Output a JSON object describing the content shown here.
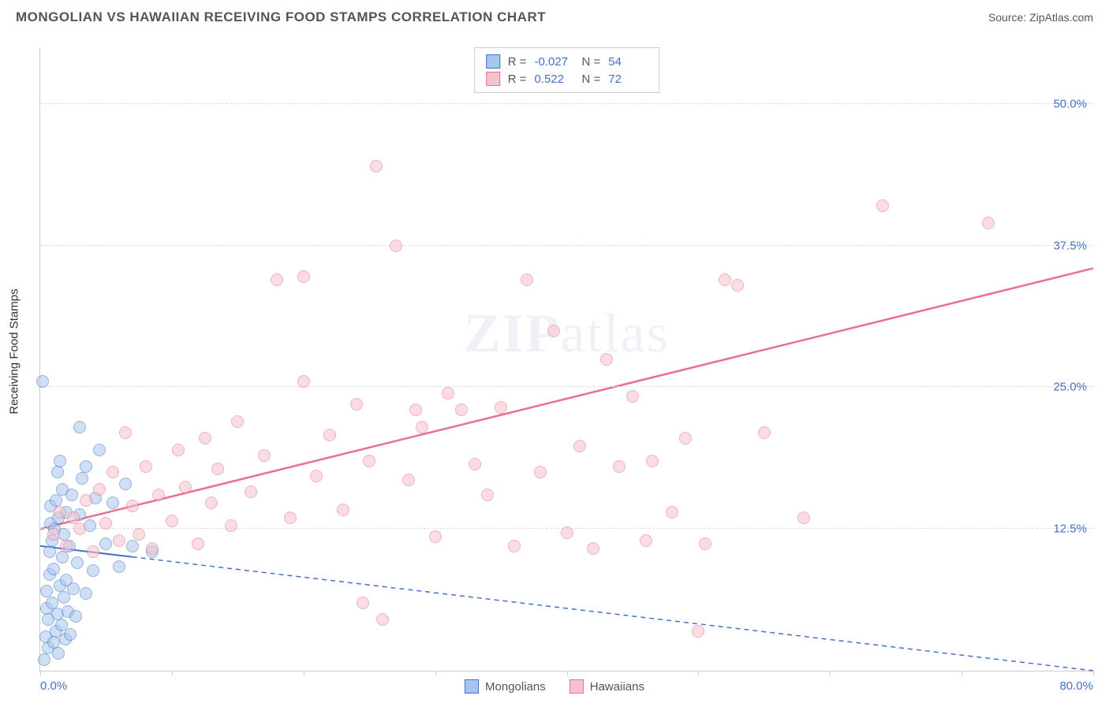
{
  "header": {
    "title": "MONGOLIAN VS HAWAIIAN RECEIVING FOOD STAMPS CORRELATION CHART",
    "source_prefix": "Source: ",
    "source_name": "ZipAtlas.com"
  },
  "chart": {
    "type": "scatter",
    "ylabel": "Receiving Food Stamps",
    "watermark": "ZIPatlas",
    "background_color": "#ffffff",
    "grid_color": "#dddddd",
    "axis_color": "#cccccc",
    "tick_label_color": "#4472c4",
    "xlim": [
      0,
      80
    ],
    "ylim": [
      0,
      55
    ],
    "xticks": [
      0,
      10,
      20,
      30,
      40,
      50,
      60,
      70,
      80
    ],
    "xtick_labels": {
      "0": "0.0%",
      "80": "80.0%"
    },
    "yticks": [
      12.5,
      25.0,
      37.5,
      50.0
    ],
    "ytick_labels": [
      "12.5%",
      "25.0%",
      "37.5%",
      "50.0%"
    ],
    "marker_radius": 8,
    "marker_opacity": 0.55,
    "series": [
      {
        "name": "Mongolians",
        "color_fill": "#a8c5ec",
        "color_stroke": "#4472c4",
        "R": "-0.027",
        "N": "54",
        "trend": {
          "x1": 0,
          "y1": 11.0,
          "x2": 80,
          "y2": 0.0,
          "color": "#4472c4",
          "width": 2,
          "dash_after_x": 7
        },
        "points": [
          [
            0.2,
            25.5
          ],
          [
            0.3,
            1.0
          ],
          [
            0.4,
            3.0
          ],
          [
            0.5,
            5.5
          ],
          [
            0.5,
            7.0
          ],
          [
            0.6,
            2.0
          ],
          [
            0.6,
            4.5
          ],
          [
            0.7,
            8.5
          ],
          [
            0.7,
            10.5
          ],
          [
            0.8,
            13.0
          ],
          [
            0.8,
            14.5
          ],
          [
            0.9,
            6.0
          ],
          [
            0.9,
            11.5
          ],
          [
            1.0,
            2.5
          ],
          [
            1.0,
            9.0
          ],
          [
            1.1,
            12.5
          ],
          [
            1.2,
            3.5
          ],
          [
            1.2,
            15.0
          ],
          [
            1.3,
            5.0
          ],
          [
            1.3,
            17.5
          ],
          [
            1.4,
            1.5
          ],
          [
            1.4,
            13.5
          ],
          [
            1.5,
            7.5
          ],
          [
            1.5,
            18.5
          ],
          [
            1.6,
            4.0
          ],
          [
            1.7,
            10.0
          ],
          [
            1.7,
            16.0
          ],
          [
            1.8,
            6.5
          ],
          [
            1.8,
            12.0
          ],
          [
            1.9,
            2.8
          ],
          [
            2.0,
            8.0
          ],
          [
            2.0,
            14.0
          ],
          [
            2.1,
            5.2
          ],
          [
            2.2,
            11.0
          ],
          [
            2.3,
            3.2
          ],
          [
            2.4,
            15.5
          ],
          [
            2.5,
            7.2
          ],
          [
            2.7,
            4.8
          ],
          [
            2.8,
            9.5
          ],
          [
            3.0,
            13.8
          ],
          [
            3.0,
            21.5
          ],
          [
            3.2,
            17.0
          ],
          [
            3.5,
            6.8
          ],
          [
            3.5,
            18.0
          ],
          [
            3.8,
            12.8
          ],
          [
            4.0,
            8.8
          ],
          [
            4.2,
            15.2
          ],
          [
            4.5,
            19.5
          ],
          [
            5.0,
            11.2
          ],
          [
            5.5,
            14.8
          ],
          [
            6.0,
            9.2
          ],
          [
            6.5,
            16.5
          ],
          [
            7.0,
            11.0
          ],
          [
            8.5,
            10.5
          ]
        ]
      },
      {
        "name": "Hawaiians",
        "color_fill": "#f5c2cd",
        "color_stroke": "#e8718d",
        "R": "0.522",
        "N": "72",
        "trend": {
          "x1": 0,
          "y1": 12.5,
          "x2": 80,
          "y2": 35.5,
          "color": "#e8718d",
          "width": 2.5,
          "dash_after_x": null
        },
        "points": [
          [
            1.0,
            12.0
          ],
          [
            1.5,
            14.0
          ],
          [
            2.0,
            11.0
          ],
          [
            2.5,
            13.5
          ],
          [
            3.0,
            12.5
          ],
          [
            3.5,
            15.0
          ],
          [
            4.0,
            10.5
          ],
          [
            4.5,
            16.0
          ],
          [
            5.0,
            13.0
          ],
          [
            5.5,
            17.5
          ],
          [
            6.0,
            11.5
          ],
          [
            6.5,
            21.0
          ],
          [
            7.0,
            14.5
          ],
          [
            7.5,
            12.0
          ],
          [
            8.0,
            18.0
          ],
          [
            8.5,
            10.8
          ],
          [
            9.0,
            15.5
          ],
          [
            10.0,
            13.2
          ],
          [
            10.5,
            19.5
          ],
          [
            11.0,
            16.2
          ],
          [
            12.0,
            11.2
          ],
          [
            12.5,
            20.5
          ],
          [
            13.0,
            14.8
          ],
          [
            13.5,
            17.8
          ],
          [
            14.5,
            12.8
          ],
          [
            15.0,
            22.0
          ],
          [
            16.0,
            15.8
          ],
          [
            17.0,
            19.0
          ],
          [
            18.0,
            34.5
          ],
          [
            19.0,
            13.5
          ],
          [
            20.0,
            25.5
          ],
          [
            20.0,
            34.8
          ],
          [
            21.0,
            17.2
          ],
          [
            22.0,
            20.8
          ],
          [
            23.0,
            14.2
          ],
          [
            24.0,
            23.5
          ],
          [
            24.5,
            6.0
          ],
          [
            25.0,
            18.5
          ],
          [
            25.5,
            44.5
          ],
          [
            26.0,
            4.5
          ],
          [
            27.0,
            37.5
          ],
          [
            28.0,
            16.8
          ],
          [
            28.5,
            23.0
          ],
          [
            29.0,
            21.5
          ],
          [
            30.0,
            11.8
          ],
          [
            31.0,
            24.5
          ],
          [
            32.0,
            23.0
          ],
          [
            33.0,
            18.2
          ],
          [
            34.0,
            15.5
          ],
          [
            35.0,
            23.2
          ],
          [
            36.0,
            11.0
          ],
          [
            37.0,
            34.5
          ],
          [
            38.0,
            17.5
          ],
          [
            39.0,
            30.0
          ],
          [
            40.0,
            12.2
          ],
          [
            41.0,
            19.8
          ],
          [
            42.0,
            10.8
          ],
          [
            43.0,
            27.5
          ],
          [
            44.0,
            18.0
          ],
          [
            45.0,
            24.2
          ],
          [
            46.0,
            11.5
          ],
          [
            48.0,
            14.0
          ],
          [
            49.0,
            20.5
          ],
          [
            50.0,
            3.5
          ],
          [
            52.0,
            34.5
          ],
          [
            53.0,
            34.0
          ],
          [
            55.0,
            21.0
          ],
          [
            58.0,
            13.5
          ],
          [
            64.0,
            41.0
          ],
          [
            72.0,
            39.5
          ],
          [
            50.5,
            11.2
          ],
          [
            46.5,
            18.5
          ]
        ]
      }
    ]
  },
  "legend": {
    "items": [
      {
        "label": "Mongolians",
        "fill": "#a8c5ec",
        "stroke": "#4472c4"
      },
      {
        "label": "Hawaiians",
        "fill": "#f5c2cd",
        "stroke": "#e8718d"
      }
    ]
  }
}
